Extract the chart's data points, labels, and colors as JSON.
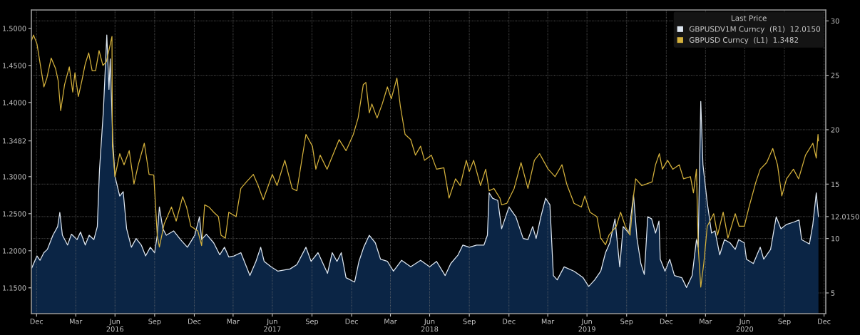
{
  "chart_data": {
    "type": "line",
    "legend_title": "Last Price",
    "legend": "top right",
    "grid": true,
    "xlim": [
      "2015-12-19",
      "2021-01-04"
    ],
    "xticks": [
      {
        "value": "2015-12-31",
        "label": "Dec"
      },
      {
        "value": "2016-03-31",
        "label": "Mar"
      },
      {
        "value": "2016-06-30",
        "label": "Jun\n2016"
      },
      {
        "value": "2016-09-30",
        "label": "Sep"
      },
      {
        "value": "2016-12-31",
        "label": "Dec"
      },
      {
        "value": "2017-03-31",
        "label": "Mar"
      },
      {
        "value": "2017-06-30",
        "label": "Jun\n2017"
      },
      {
        "value": "2017-09-30",
        "label": "Sep"
      },
      {
        "value": "2017-12-31",
        "label": "Dec"
      },
      {
        "value": "2018-03-31",
        "label": "Mar"
      },
      {
        "value": "2018-06-30",
        "label": "Jun\n2018"
      },
      {
        "value": "2018-09-30",
        "label": "Sep"
      },
      {
        "value": "2018-12-31",
        "label": "Dec"
      },
      {
        "value": "2019-03-31",
        "label": "Mar"
      },
      {
        "value": "2019-06-30",
        "label": "Jun\n2019"
      },
      {
        "value": "2019-09-30",
        "label": "Sep"
      },
      {
        "value": "2019-12-31",
        "label": "Dec"
      },
      {
        "value": "2020-03-31",
        "label": "Mar"
      },
      {
        "value": "2020-06-30",
        "label": "Jun\n2020"
      },
      {
        "value": "2020-09-30",
        "label": "Sep"
      },
      {
        "value": "2020-12-31",
        "label": "Dec"
      }
    ],
    "ylim": [
      1.1152,
      1.5248
    ],
    "yticks": [
      {
        "value": 1.15,
        "label": "1.1500"
      },
      {
        "value": 1.2,
        "label": "1.2000"
      },
      {
        "value": 1.25,
        "label": "1.2500"
      },
      {
        "value": 1.3,
        "label": "1.3000"
      },
      {
        "value": 1.3482,
        "label": "1.3482"
      },
      {
        "value": 1.4,
        "label": "1.4000"
      },
      {
        "value": 1.45,
        "label": "1.4500"
      },
      {
        "value": 1.5,
        "label": "1.5000"
      }
    ],
    "y2lim": [
      3.1,
      31.0
    ],
    "y2ticks": [
      5,
      10,
      {
        "value": 12.015,
        "label": "12.0150"
      },
      15,
      20,
      25,
      30
    ],
    "series": [
      {
        "name": "GBPUSDV1M Curncy  (R1)  12.0150",
        "type": "area",
        "axis": "y2",
        "color": "#dde6f0",
        "x": [
          "2015-12-20",
          "2016-01-01",
          "2016-01-08",
          "2016-01-17",
          "2016-01-25",
          "2016-02-07",
          "2016-02-18",
          "2016-02-23",
          "2016-02-29",
          "2016-03-12",
          "2016-03-21",
          "2016-04-03",
          "2016-04-11",
          "2016-04-22",
          "2016-05-01",
          "2016-05-12",
          "2016-05-20",
          "2016-05-25",
          "2016-06-03",
          "2016-06-11",
          "2016-06-16",
          "2016-06-19",
          "2016-06-25",
          "2016-06-30",
          "2016-07-11",
          "2016-07-19",
          "2016-07-27",
          "2016-08-07",
          "2016-08-18",
          "2016-08-30",
          "2016-09-09",
          "2016-09-20",
          "2016-09-30",
          "2016-10-06",
          "2016-10-11",
          "2016-10-19",
          "2016-10-27",
          "2016-11-13",
          "2016-11-29",
          "2016-12-15",
          "2017-01-01",
          "2017-01-12",
          "2017-01-17",
          "2017-01-28",
          "2017-02-14",
          "2017-02-28",
          "2017-03-11",
          "2017-03-21",
          "2017-04-02",
          "2017-04-18",
          "2017-05-09",
          "2017-05-23",
          "2017-06-03",
          "2017-06-11",
          "2017-06-27",
          "2017-07-13",
          "2017-08-10",
          "2017-08-26",
          "2017-09-16",
          "2017-09-28",
          "2017-10-14",
          "2017-11-05",
          "2017-11-16",
          "2017-11-27",
          "2017-12-07",
          "2017-12-18",
          "2018-01-07",
          "2018-01-17",
          "2018-01-28",
          "2018-02-10",
          "2018-02-24",
          "2018-03-08",
          "2018-03-24",
          "2018-04-07",
          "2018-04-26",
          "2018-05-17",
          "2018-06-09",
          "2018-06-30",
          "2018-07-16",
          "2018-08-05",
          "2018-08-18",
          "2018-09-04",
          "2018-09-15",
          "2018-09-30",
          "2018-10-17",
          "2018-11-03",
          "2018-11-11",
          "2018-11-15",
          "2018-11-23",
          "2018-12-05",
          "2018-12-14",
          "2018-12-31",
          "2019-01-16",
          "2019-02-02",
          "2019-02-13",
          "2019-02-24",
          "2019-03-04",
          "2019-03-15",
          "2019-03-26",
          "2019-04-05",
          "2019-04-13",
          "2019-04-22",
          "2019-05-08",
          "2019-05-31",
          "2019-06-21",
          "2019-07-04",
          "2019-07-18",
          "2019-08-01",
          "2019-08-12",
          "2019-08-22",
          "2019-09-03",
          "2019-09-14",
          "2019-09-22",
          "2019-10-05",
          "2019-10-16",
          "2019-10-24",
          "2019-11-02",
          "2019-11-10",
          "2019-11-18",
          "2019-11-27",
          "2019-12-06",
          "2019-12-14",
          "2019-12-17",
          "2019-12-28",
          "2020-01-08",
          "2020-01-19",
          "2020-02-05",
          "2020-02-16",
          "2020-02-29",
          "2020-03-10",
          "2020-03-14",
          "2020-03-20",
          "2020-03-25",
          "2020-04-04",
          "2020-04-14",
          "2020-04-22",
          "2020-05-03",
          "2020-05-14",
          "2020-05-27",
          "2020-06-08",
          "2020-06-16",
          "2020-06-29",
          "2020-07-04",
          "2020-07-20",
          "2020-08-05",
          "2020-08-13",
          "2020-08-29",
          "2020-09-11",
          "2020-09-22",
          "2020-10-05",
          "2020-10-21",
          "2020-11-03",
          "2020-11-09",
          "2020-11-27",
          "2020-12-05",
          "2020-12-13",
          "2020-12-18"
        ],
        "values": [
          7.3,
          8.4,
          8.0,
          8.7,
          9.0,
          10.3,
          11.1,
          12.4,
          10.3,
          9.4,
          10.4,
          9.9,
          10.6,
          9.4,
          10.3,
          9.9,
          11.1,
          16.3,
          21.7,
          28.7,
          23.7,
          26.5,
          18.9,
          15.7,
          13.9,
          14.3,
          10.9,
          9.2,
          10.0,
          9.4,
          8.4,
          9.2,
          8.7,
          10.3,
          12.9,
          10.9,
          10.3,
          10.7,
          9.9,
          9.2,
          10.3,
          12.0,
          9.9,
          10.4,
          9.6,
          8.5,
          9.2,
          8.3,
          8.4,
          8.7,
          6.6,
          7.9,
          9.2,
          7.9,
          7.4,
          7.0,
          7.2,
          7.6,
          9.2,
          7.9,
          8.7,
          6.8,
          8.7,
          7.9,
          8.7,
          6.4,
          6.0,
          7.9,
          9.2,
          10.3,
          9.6,
          8.1,
          7.9,
          7.0,
          8.0,
          7.4,
          8.0,
          7.4,
          7.9,
          6.6,
          7.7,
          8.5,
          9.4,
          9.2,
          9.4,
          9.4,
          10.3,
          14.2,
          13.7,
          13.5,
          10.9,
          12.9,
          12.0,
          10.0,
          9.9,
          11.1,
          10.0,
          12.0,
          13.7,
          13.1,
          6.6,
          6.2,
          7.4,
          7.0,
          6.4,
          5.6,
          6.2,
          7.0,
          8.7,
          9.6,
          11.8,
          7.4,
          11.1,
          10.5,
          14.0,
          10.0,
          7.7,
          6.7,
          12.0,
          11.8,
          10.5,
          11.6,
          8.1,
          7.0,
          8.1,
          6.6,
          6.4,
          5.5,
          6.6,
          9.9,
          9.2,
          22.6,
          16.8,
          13.3,
          10.5,
          10.7,
          8.5,
          9.9,
          9.6,
          9.0,
          9.9,
          9.6,
          8.1,
          7.7,
          9.2,
          8.1,
          9.0,
          12.0,
          10.9,
          11.3,
          11.5,
          11.7,
          9.9,
          9.5,
          11.3,
          14.2,
          12.015
        ]
      },
      {
        "name": "GBPUSD Curncy  (L1)  1.3482",
        "color": "#d4b13c",
        "x": [
          "2015-12-19",
          "2015-12-24",
          "2016-01-01",
          "2016-01-17",
          "2016-01-24",
          "2016-02-03",
          "2016-02-13",
          "2016-02-19",
          "2016-02-25",
          "2016-03-05",
          "2016-03-16",
          "2016-03-24",
          "2016-03-29",
          "2016-04-06",
          "2016-04-14",
          "2016-04-22",
          "2016-04-30",
          "2016-05-08",
          "2016-05-16",
          "2016-05-24",
          "2016-06-02",
          "2016-06-10",
          "2016-06-23",
          "2016-06-24",
          "2016-06-30",
          "2016-07-11",
          "2016-07-21",
          "2016-08-02",
          "2016-08-13",
          "2016-08-23",
          "2016-09-06",
          "2016-09-17",
          "2016-09-28",
          "2016-10-06",
          "2016-10-11",
          "2016-10-22",
          "2016-11-08",
          "2016-11-19",
          "2016-12-04",
          "2016-12-13",
          "2016-12-23",
          "2017-01-08",
          "2017-01-17",
          "2017-01-24",
          "2017-02-03",
          "2017-02-14",
          "2017-02-25",
          "2017-03-03",
          "2017-03-13",
          "2017-03-21",
          "2017-04-07",
          "2017-04-18",
          "2017-05-01",
          "2017-05-17",
          "2017-05-28",
          "2017-06-09",
          "2017-06-30",
          "2017-07-11",
          "2017-07-29",
          "2017-08-15",
          "2017-08-26",
          "2017-09-16",
          "2017-10-01",
          "2017-10-09",
          "2017-10-19",
          "2017-11-04",
          "2017-12-02",
          "2017-12-18",
          "2018-01-04",
          "2018-01-15",
          "2018-01-27",
          "2018-02-02",
          "2018-02-10",
          "2018-02-16",
          "2018-02-28",
          "2018-03-12",
          "2018-03-24",
          "2018-04-02",
          "2018-04-15",
          "2018-04-23",
          "2018-05-04",
          "2018-05-17",
          "2018-05-28",
          "2018-06-09",
          "2018-06-18",
          "2018-07-04",
          "2018-07-16",
          "2018-08-02",
          "2018-08-14",
          "2018-08-29",
          "2018-09-09",
          "2018-09-23",
          "2018-09-30",
          "2018-10-10",
          "2018-10-26",
          "2018-11-07",
          "2018-11-15",
          "2018-11-26",
          "2018-12-10",
          "2018-12-14",
          "2018-12-26",
          "2019-01-12",
          "2019-01-28",
          "2019-02-13",
          "2019-02-28",
          "2019-03-12",
          "2019-04-01",
          "2019-04-17",
          "2019-05-03",
          "2019-05-14",
          "2019-05-31",
          "2019-06-17",
          "2019-06-25",
          "2019-07-07",
          "2019-07-23",
          "2019-08-01",
          "2019-08-12",
          "2019-08-20",
          "2019-09-06",
          "2019-09-16",
          "2019-09-27",
          "2019-10-08",
          "2019-10-16",
          "2019-10-21",
          "2019-11-04",
          "2019-11-15",
          "2019-11-28",
          "2019-12-06",
          "2019-12-15",
          "2019-12-22",
          "2020-01-03",
          "2020-01-15",
          "2020-01-30",
          "2020-02-09",
          "2020-02-25",
          "2020-03-03",
          "2020-03-10",
          "2020-03-14",
          "2020-03-20",
          "2020-03-27",
          "2020-04-04",
          "2020-04-19",
          "2020-04-28",
          "2020-05-11",
          "2020-05-22",
          "2020-06-08",
          "2020-06-17",
          "2020-06-29",
          "2020-07-10",
          "2020-07-26",
          "2020-08-05",
          "2020-08-20",
          "2020-09-03",
          "2020-09-14",
          "2020-09-24",
          "2020-10-05",
          "2020-10-21",
          "2020-11-02",
          "2020-11-18",
          "2020-12-05",
          "2020-12-13",
          "2020-12-17",
          "2020-12-18"
        ],
        "values": [
          1.483,
          1.491,
          1.479,
          1.421,
          1.433,
          1.46,
          1.446,
          1.43,
          1.389,
          1.424,
          1.448,
          1.414,
          1.44,
          1.408,
          1.429,
          1.452,
          1.467,
          1.443,
          1.443,
          1.47,
          1.45,
          1.455,
          1.489,
          1.341,
          1.3,
          1.331,
          1.316,
          1.335,
          1.29,
          1.316,
          1.345,
          1.303,
          1.302,
          1.221,
          1.205,
          1.236,
          1.259,
          1.24,
          1.273,
          1.259,
          1.233,
          1.227,
          1.207,
          1.262,
          1.259,
          1.252,
          1.246,
          1.221,
          1.217,
          1.252,
          1.246,
          1.284,
          1.293,
          1.303,
          1.288,
          1.269,
          1.303,
          1.288,
          1.322,
          1.284,
          1.281,
          1.357,
          1.341,
          1.31,
          1.329,
          1.31,
          1.35,
          1.335,
          1.357,
          1.379,
          1.424,
          1.427,
          1.386,
          1.398,
          1.379,
          1.398,
          1.421,
          1.405,
          1.433,
          1.395,
          1.357,
          1.35,
          1.329,
          1.341,
          1.322,
          1.329,
          1.31,
          1.312,
          1.271,
          1.297,
          1.288,
          1.322,
          1.307,
          1.322,
          1.288,
          1.31,
          1.281,
          1.284,
          1.271,
          1.262,
          1.264,
          1.284,
          1.319,
          1.284,
          1.322,
          1.331,
          1.31,
          1.3,
          1.316,
          1.29,
          1.264,
          1.259,
          1.274,
          1.252,
          1.246,
          1.217,
          1.208,
          1.221,
          1.233,
          1.252,
          1.233,
          1.221,
          1.274,
          1.297,
          1.288,
          1.29,
          1.293,
          1.316,
          1.331,
          1.31,
          1.322,
          1.31,
          1.316,
          1.297,
          1.3,
          1.278,
          1.31,
          1.205,
          1.151,
          1.183,
          1.233,
          1.25,
          1.221,
          1.252,
          1.217,
          1.25,
          1.233,
          1.233,
          1.259,
          1.293,
          1.31,
          1.319,
          1.338,
          1.316,
          1.274,
          1.297,
          1.31,
          1.297,
          1.329,
          1.345,
          1.325,
          1.357,
          1.3482
        ]
      }
    ]
  }
}
